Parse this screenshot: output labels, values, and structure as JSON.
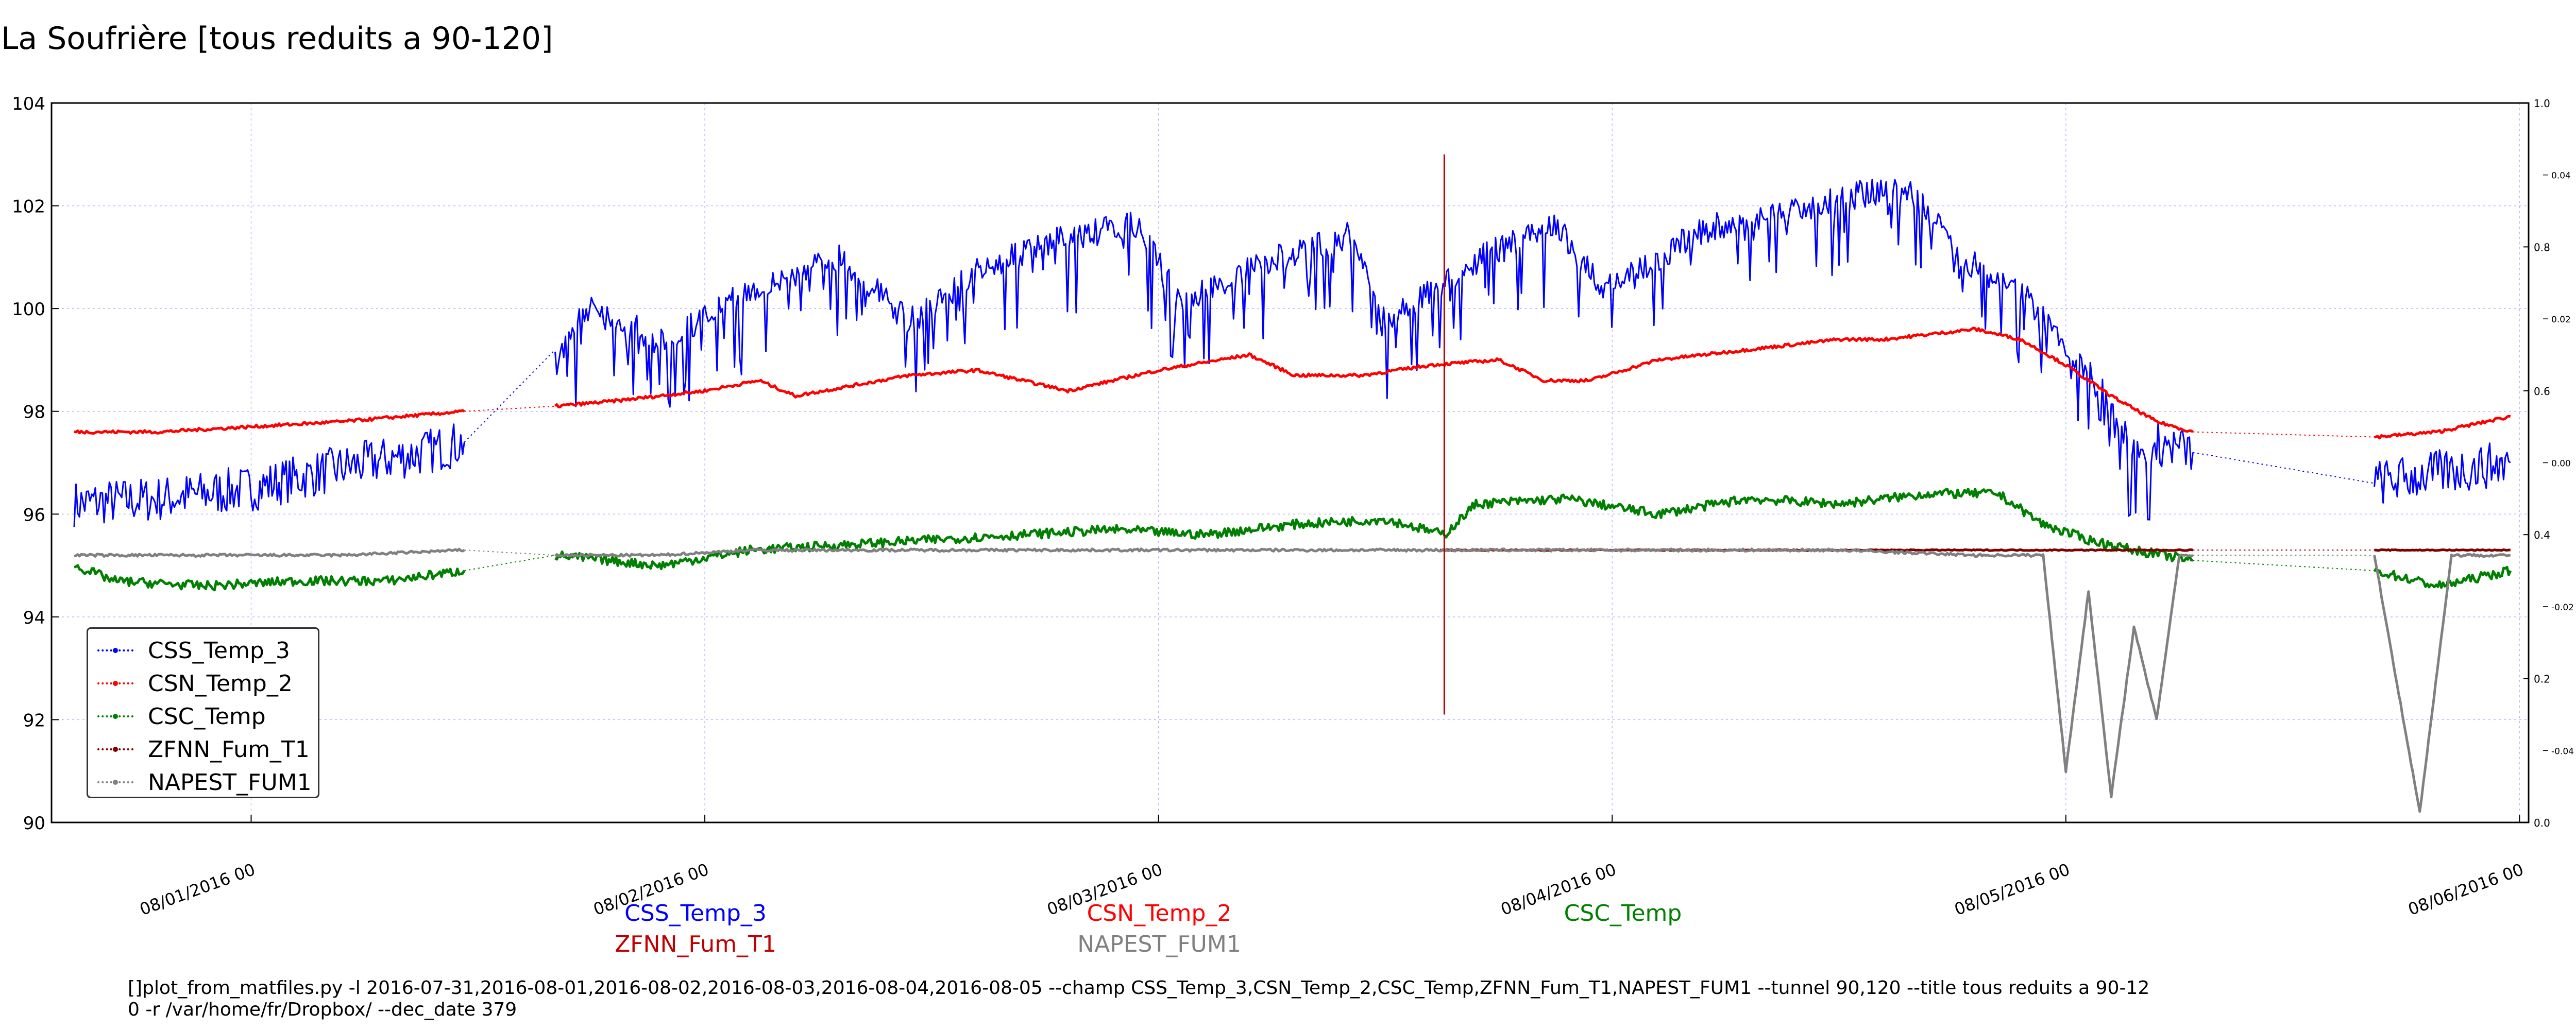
{
  "title": "La Soufrière [tous reduits a 90-120]",
  "chart_data": {
    "type": "line",
    "ylim": [
      90,
      104
    ],
    "y_ticks": [
      "90",
      "92",
      "94",
      "96",
      "98",
      "100",
      "102",
      "104"
    ],
    "x_ticks": [
      "08/01/2016 00",
      "08/02/2016 00",
      "08/03/2016 00",
      "08/04/2016 00",
      "08/05/2016 00",
      "08/06/2016 00"
    ],
    "xlim_days": [
      0.56,
      6.02
    ],
    "right_axis_outer": {
      "ylim": [
        0.0,
        1.0
      ],
      "ticks": [
        "0.0",
        "0.2",
        "0.4",
        "0.6",
        "0.8",
        "1.0"
      ]
    },
    "right_axis_inner": {
      "ylim": [
        -0.05,
        0.05
      ],
      "ticks": [
        "-0.04",
        "-0.02",
        "0.00",
        "0.02",
        "0.04"
      ]
    },
    "grid": true,
    "legend_position": "lower-left",
    "series": [
      {
        "name": "CSS_Temp_3",
        "color": "#0000ff",
        "points": [
          [
            0.61,
            96.2
          ],
          [
            0.8,
            96.3
          ],
          [
            1.0,
            96.5
          ],
          [
            1.2,
            96.9
          ],
          [
            1.38,
            97.2
          ],
          [
            1.47,
            97.4
          ],
          [
            1.67,
            99.2
          ],
          [
            1.75,
            100.4
          ],
          [
            1.9,
            99.6
          ],
          [
            2.1,
            100.6
          ],
          [
            2.3,
            101.3
          ],
          [
            2.45,
            100.0
          ],
          [
            2.6,
            101.0
          ],
          [
            2.78,
            101.6
          ],
          [
            2.95,
            101.9
          ],
          [
            3.05,
            100.4
          ],
          [
            3.25,
            101.2
          ],
          [
            3.42,
            101.7
          ],
          [
            3.5,
            100.0
          ],
          [
            3.72,
            101.3
          ],
          [
            3.88,
            101.9
          ],
          [
            3.98,
            100.6
          ],
          [
            4.2,
            101.8
          ],
          [
            4.4,
            102.2
          ],
          [
            4.55,
            102.5
          ],
          [
            4.65,
            102.6
          ],
          [
            4.78,
            101.2
          ],
          [
            4.9,
            100.6
          ],
          [
            5.0,
            99.6
          ],
          [
            5.1,
            98.4
          ],
          [
            5.15,
            97.5
          ],
          [
            5.28,
            97.2
          ],
          [
            5.68,
            96.6
          ],
          [
            5.82,
            96.8
          ],
          [
            5.98,
            97.0
          ]
        ]
      },
      {
        "name": "CSN_Temp_2",
        "color": "#ff0000",
        "points": [
          [
            0.61,
            97.6
          ],
          [
            0.8,
            97.6
          ],
          [
            1.0,
            97.7
          ],
          [
            1.2,
            97.8
          ],
          [
            1.47,
            98.0
          ],
          [
            1.67,
            98.1
          ],
          [
            1.8,
            98.2
          ],
          [
            2.0,
            98.4
          ],
          [
            2.12,
            98.6
          ],
          [
            2.2,
            98.3
          ],
          [
            2.45,
            98.7
          ],
          [
            2.6,
            98.8
          ],
          [
            2.8,
            98.4
          ],
          [
            3.0,
            98.8
          ],
          [
            3.2,
            99.1
          ],
          [
            3.3,
            98.7
          ],
          [
            3.45,
            98.7
          ],
          [
            3.6,
            98.9
          ],
          [
            3.75,
            99.0
          ],
          [
            3.85,
            98.6
          ],
          [
            3.95,
            98.6
          ],
          [
            4.1,
            99.0
          ],
          [
            4.3,
            99.2
          ],
          [
            4.5,
            99.4
          ],
          [
            4.6,
            99.4
          ],
          [
            4.7,
            99.5
          ],
          [
            4.8,
            99.6
          ],
          [
            4.9,
            99.4
          ],
          [
            5.0,
            98.9
          ],
          [
            5.1,
            98.3
          ],
          [
            5.2,
            97.8
          ],
          [
            5.28,
            97.6
          ],
          [
            5.68,
            97.5
          ],
          [
            5.82,
            97.6
          ],
          [
            5.98,
            97.9
          ]
        ]
      },
      {
        "name": "CSC_Temp",
        "color": "#008000",
        "points": [
          [
            0.61,
            95.0
          ],
          [
            0.7,
            94.7
          ],
          [
            0.9,
            94.6
          ],
          [
            1.1,
            94.7
          ],
          [
            1.3,
            94.7
          ],
          [
            1.47,
            94.9
          ],
          [
            1.67,
            95.2
          ],
          [
            1.9,
            95.0
          ],
          [
            2.1,
            95.3
          ],
          [
            2.3,
            95.4
          ],
          [
            2.5,
            95.5
          ],
          [
            2.7,
            95.6
          ],
          [
            2.9,
            95.7
          ],
          [
            3.1,
            95.6
          ],
          [
            3.3,
            95.8
          ],
          [
            3.5,
            95.9
          ],
          [
            3.63,
            95.6
          ],
          [
            3.7,
            96.2
          ],
          [
            3.9,
            96.3
          ],
          [
            4.1,
            96.0
          ],
          [
            4.3,
            96.3
          ],
          [
            4.5,
            96.2
          ],
          [
            4.7,
            96.4
          ],
          [
            4.85,
            96.4
          ],
          [
            4.95,
            95.8
          ],
          [
            5.05,
            95.5
          ],
          [
            5.15,
            95.3
          ],
          [
            5.28,
            95.1
          ],
          [
            5.68,
            94.9
          ],
          [
            5.82,
            94.6
          ],
          [
            5.98,
            94.9
          ]
        ]
      },
      {
        "name": "ZFNN_Fum_T1",
        "color": "#800000",
        "points": [
          [
            3.62,
            95.3
          ],
          [
            3.8,
            95.3
          ],
          [
            4.0,
            95.3
          ],
          [
            4.3,
            95.3
          ],
          [
            4.6,
            95.3
          ],
          [
            4.9,
            95.3
          ],
          [
            5.1,
            95.3
          ],
          [
            5.28,
            95.3
          ],
          [
            5.68,
            95.3
          ],
          [
            5.98,
            95.3
          ]
        ]
      },
      {
        "name": "NAPEST_FUM1",
        "color": "#808080",
        "points": [
          [
            0.61,
            95.2
          ],
          [
            0.9,
            95.2
          ],
          [
            1.2,
            95.2
          ],
          [
            1.47,
            95.3
          ],
          [
            1.67,
            95.2
          ],
          [
            1.9,
            95.2
          ],
          [
            2.1,
            95.3
          ],
          [
            2.4,
            95.3
          ],
          [
            2.7,
            95.3
          ],
          [
            3.0,
            95.3
          ],
          [
            3.3,
            95.3
          ],
          [
            3.6,
            95.3
          ],
          [
            3.9,
            95.3
          ],
          [
            4.2,
            95.3
          ],
          [
            4.5,
            95.3
          ],
          [
            4.8,
            95.2
          ],
          [
            4.95,
            95.2
          ],
          [
            5.0,
            91.0
          ],
          [
            5.05,
            94.5
          ],
          [
            5.1,
            90.5
          ],
          [
            5.15,
            93.8
          ],
          [
            5.2,
            92.0
          ],
          [
            5.25,
            95.2
          ],
          [
            5.28,
            95.2
          ],
          [
            5.68,
            95.2
          ],
          [
            5.78,
            90.2
          ],
          [
            5.85,
            95.2
          ],
          [
            5.98,
            95.2
          ]
        ]
      }
    ],
    "csn_spike": {
      "x": 3.63,
      "ymin": 92.1,
      "ymax": 103.0
    }
  },
  "legend": {
    "items": [
      {
        "label": "CSS_Temp_3",
        "color": "#0000ff"
      },
      {
        "label": "CSN_Temp_2",
        "color": "#ff0000"
      },
      {
        "label": "CSC_Temp",
        "color": "#008000"
      },
      {
        "label": "ZFNN_Fum_T1",
        "color": "#800000"
      },
      {
        "label": "NAPEST_FUM1",
        "color": "#808080"
      }
    ]
  },
  "series_captions": {
    "css": "CSS_Temp_3",
    "csn": "CSN_Temp_2",
    "csc": "CSC_Temp",
    "zfnn": "ZFNN_Fum_T1",
    "napest": "NAPEST_FUM1"
  },
  "command_line": {
    "line1": "[]plot_from_matfiles.py -l 2016-07-31,2016-08-01,2016-08-02,2016-08-03,2016-08-04,2016-08-05 --champ CSS_Temp_3,CSN_Temp_2,CSC_Temp,ZFNN_Fum_T1,NAPEST_FUM1 --tunnel 90,120 --title tous reduits a 90-12",
    "line2": "0 -r /var/home/fr/Dropbox/ --dec_date 379"
  }
}
